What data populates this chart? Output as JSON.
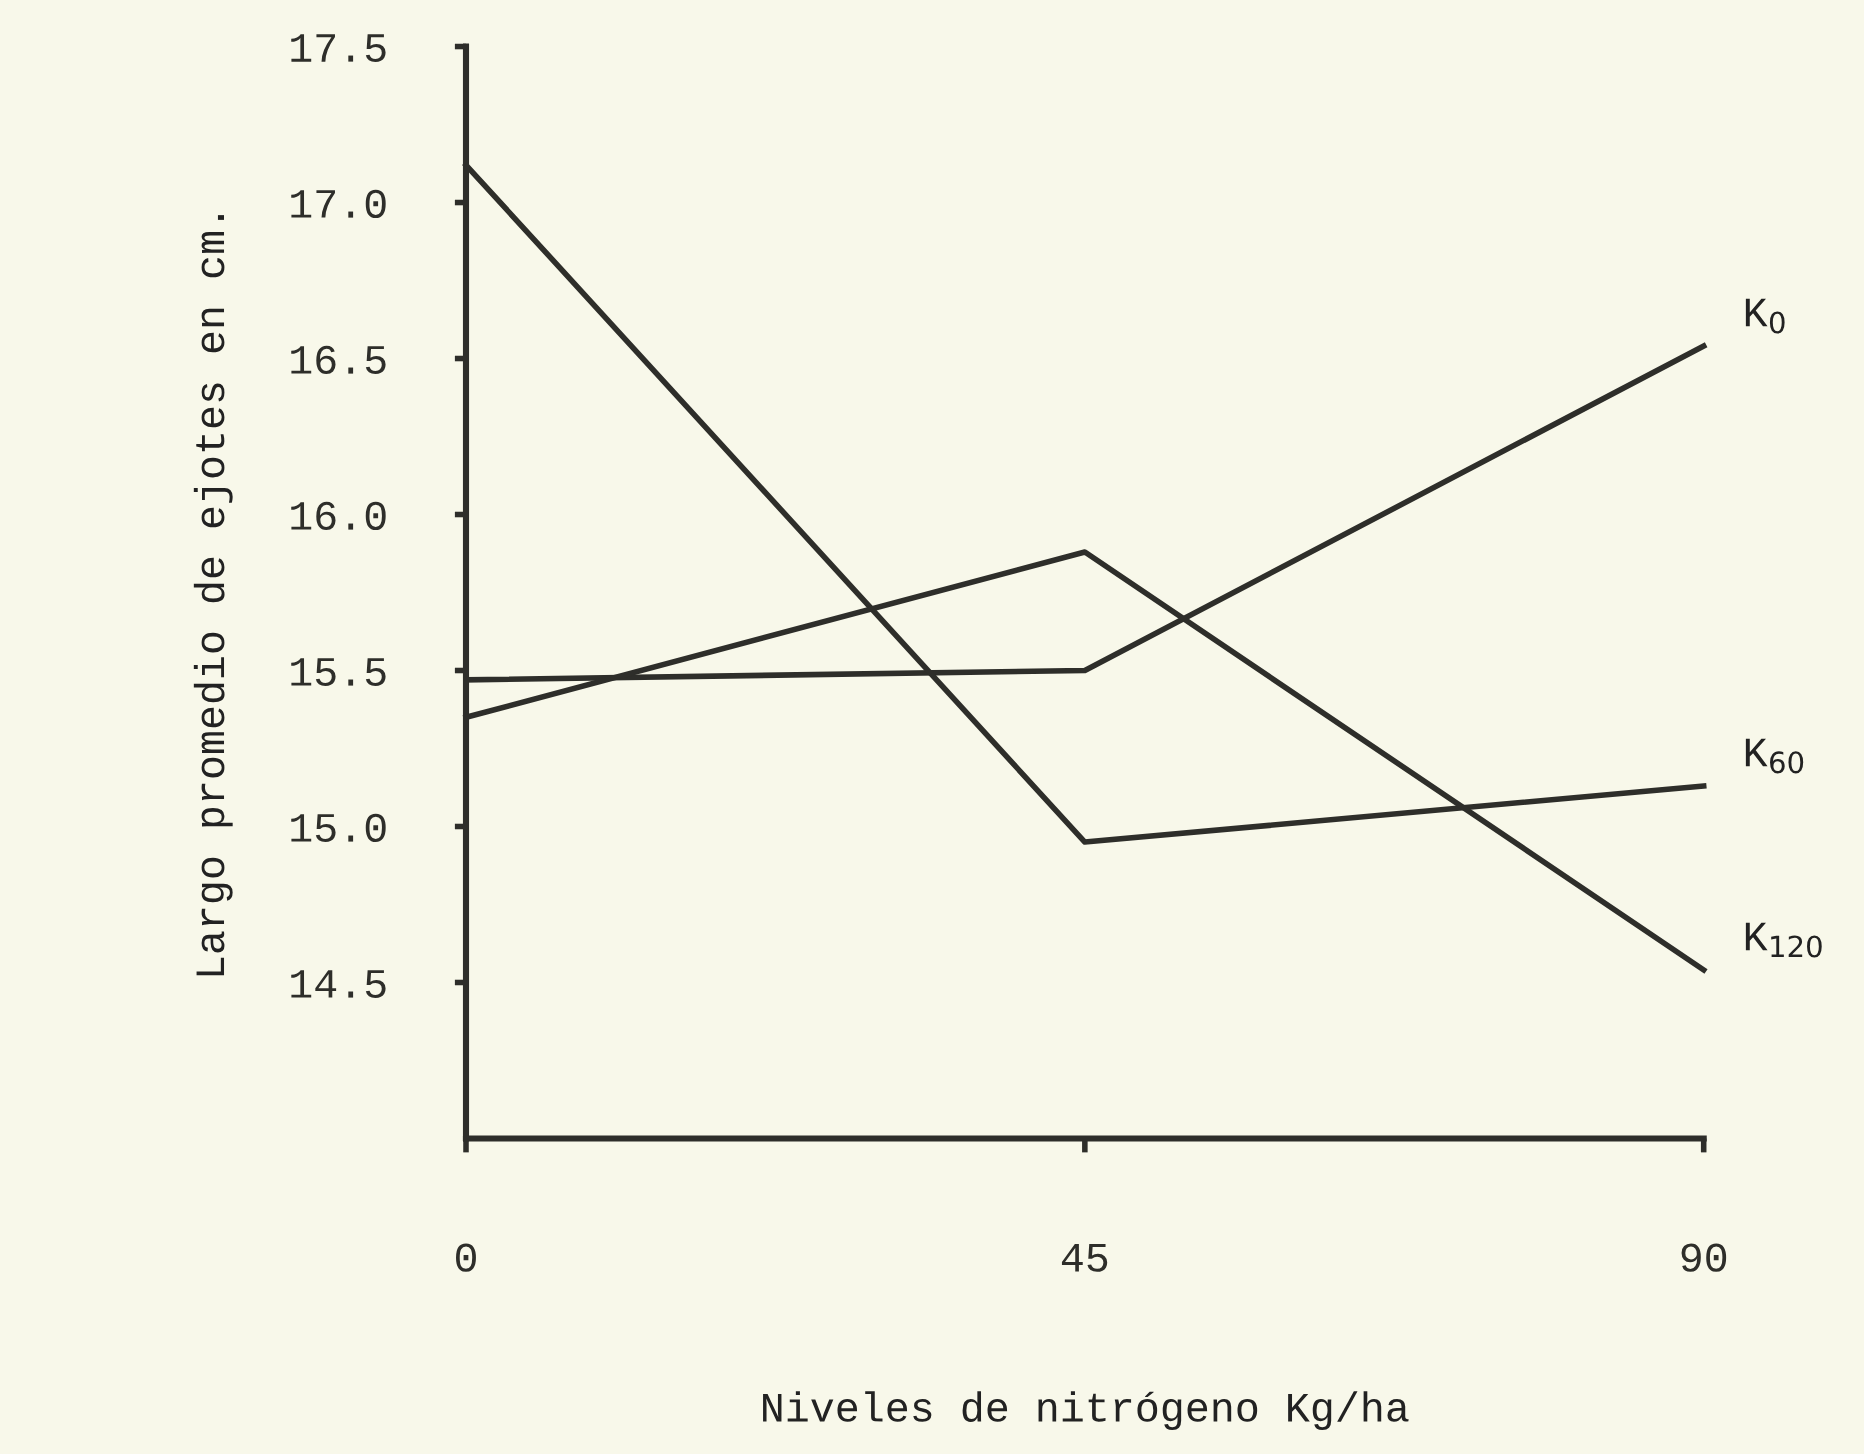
{
  "chart_data": {
    "type": "line",
    "xlabel": "Niveles de nitrógeno Kg/ha",
    "ylabel": "Largo promedio de ejotes en cm.",
    "x": [
      0,
      45,
      90
    ],
    "xlim": [
      0,
      90
    ],
    "xticks": [
      0,
      45,
      90
    ],
    "ylim": [
      14.0,
      17.5
    ],
    "yticks": [
      14.5,
      {
        "value": 15,
        "label": "15.0"
      },
      15.5,
      {
        "value": 16,
        "label": "16.0"
      },
      16.5,
      {
        "value": 17,
        "label": "17.0"
      },
      17.5
    ],
    "series": [
      {
        "name": "K$_{0}$",
        "color": "#2e2e2a",
        "values": [
          15.47,
          15.5,
          16.54
        ]
      },
      {
        "name": "K$_{60}$",
        "color": "#2e2e2a",
        "values": [
          17.12,
          14.95,
          15.13
        ]
      },
      {
        "name": "K$_{120}$",
        "color": "#2e2e2a",
        "values": [
          15.35,
          15.88,
          14.54
        ]
      }
    ],
    "grid": false,
    "legend": false,
    "marker": "none",
    "line_style": "solid"
  }
}
